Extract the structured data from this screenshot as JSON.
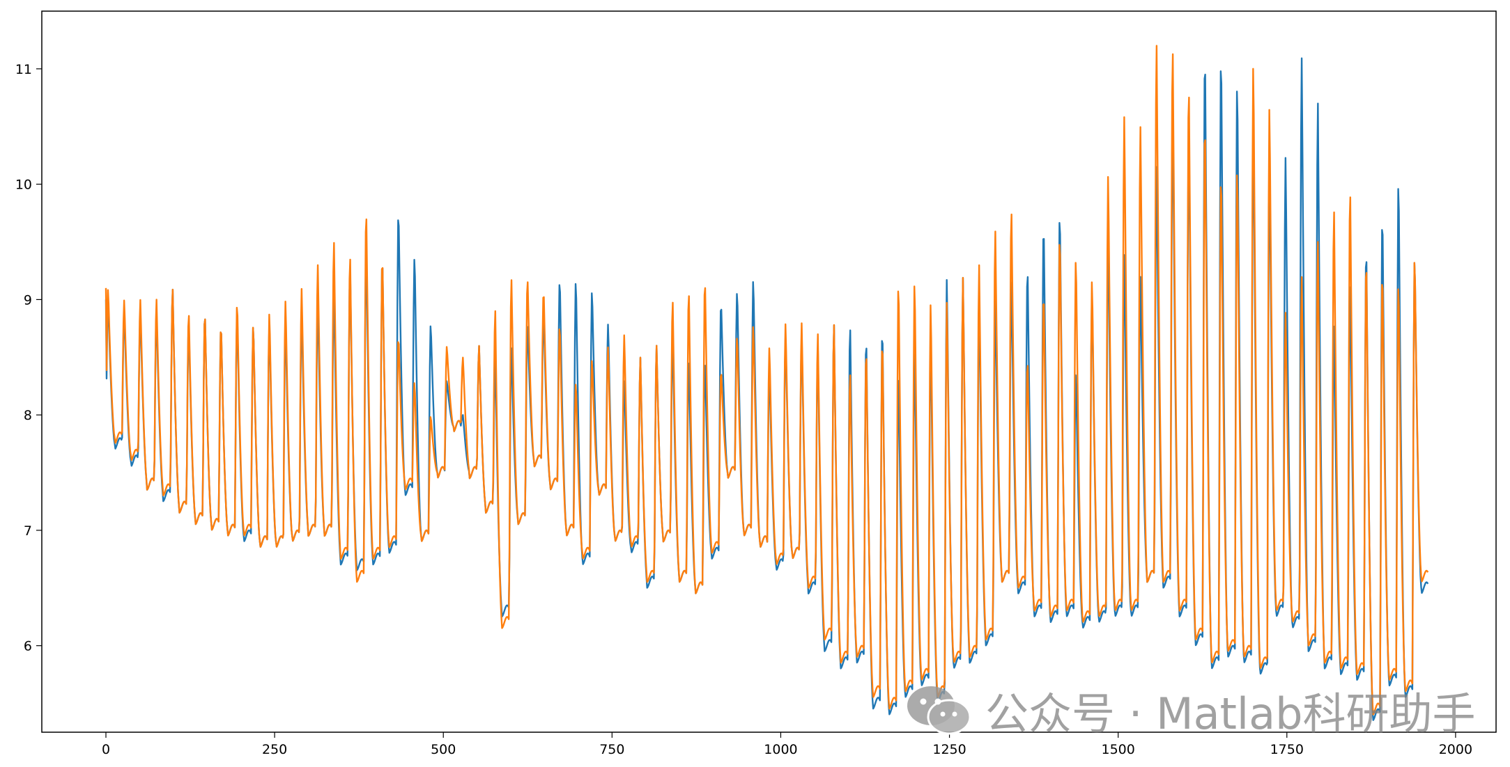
{
  "chart_data": {
    "type": "line",
    "title": "",
    "xlabel": "",
    "ylabel": "",
    "xlim": [
      -95,
      2060
    ],
    "ylim": [
      5.25,
      11.5
    ],
    "x_ticks": [
      0,
      250,
      500,
      750,
      1000,
      1250,
      1500,
      1750,
      2000
    ],
    "y_ticks": [
      6,
      7,
      8,
      9,
      10,
      11
    ],
    "grid": false,
    "legend": "none",
    "n_points": 1960,
    "series": [
      {
        "color": "#1f77b4",
        "peaks": [
          9.0,
          8.9,
          8.9,
          8.9,
          9.1,
          8.8,
          8.9,
          8.8,
          8.9,
          8.8,
          8.8,
          8.8,
          8.9,
          9.0,
          9.1,
          9.3,
          9.5,
          9.4,
          9.8,
          9.4,
          8.8,
          8.3,
          8.0,
          8.6,
          8.5,
          8.6,
          8.8,
          8.9,
          9.2,
          9.2,
          9.1,
          8.8,
          8.3,
          8.5,
          8.6,
          8.7,
          8.5,
          8.5,
          9.0,
          9.1,
          9.2,
          8.4,
          8.7,
          8.7,
          8.6,
          8.8,
          8.8,
          8.7,
          8.8,
          8.4,
          8.6,
          8.7,
          9.2,
          9.2,
          9.0,
          9.0,
          9.2,
          9.3,
          9.7,
          9.8,
          8.4,
          9.1,
          9.6,
          9.4,
          9.2,
          10.15,
          10.7,
          10.55,
          11.2,
          11.2,
          10.95,
          10.6,
          10.2,
          10.25,
          11.1,
          10.7,
          8.8,
          9.2,
          9.5,
          9.8,
          10.1,
          9.4
        ],
        "troughs": [
          7.75,
          7.6,
          7.4,
          7.3,
          7.2,
          7.1,
          7.05,
          7.0,
          6.95,
          6.9,
          6.9,
          6.95,
          7.0,
          7.0,
          6.75,
          6.7,
          6.75,
          6.85,
          7.35,
          6.95,
          7.5,
          7.9,
          7.5,
          7.2,
          6.3,
          7.1,
          7.6,
          7.4,
          7.0,
          6.75,
          7.35,
          6.95,
          6.85,
          6.55,
          6.95,
          6.6,
          6.5,
          6.8,
          7.5,
          7.0,
          6.9,
          6.7,
          6.8,
          6.5,
          6.0,
          5.85,
          5.9,
          5.5,
          5.45,
          5.6,
          5.7,
          5.55,
          5.85,
          5.9,
          6.05,
          6.6,
          6.5,
          6.3,
          6.25,
          6.3,
          6.2,
          6.25,
          6.3,
          6.3,
          6.6,
          6.55,
          6.3,
          6.05,
          5.85,
          5.95,
          5.9,
          5.8,
          6.3,
          6.2,
          6.0,
          5.85,
          5.8,
          5.75,
          5.4,
          5.7,
          5.6,
          6.5
        ]
      },
      {
        "color": "#ff7f0e",
        "peaks": [
          9.1,
          9.0,
          9.0,
          9.0,
          9.1,
          8.9,
          8.9,
          8.8,
          9.0,
          8.8,
          8.9,
          9.0,
          9.1,
          9.3,
          9.5,
          9.4,
          9.8,
          9.4,
          8.7,
          8.3,
          8.0,
          8.6,
          8.5,
          8.6,
          8.9,
          9.2,
          9.2,
          9.1,
          8.8,
          8.3,
          8.5,
          8.6,
          8.7,
          8.5,
          8.6,
          9.0,
          9.1,
          9.2,
          8.4,
          8.7,
          8.8,
          8.6,
          8.8,
          8.8,
          8.7,
          8.8,
          8.4,
          8.6,
          8.7,
          9.2,
          9.2,
          9.0,
          9.0,
          9.2,
          9.3,
          9.6,
          9.8,
          8.5,
          9.1,
          9.6,
          9.4,
          9.2,
          10.1,
          10.6,
          10.5,
          11.2,
          11.2,
          10.9,
          10.6,
          10.15,
          10.2,
          11.1,
          10.7,
          8.9,
          9.2,
          9.5,
          9.8,
          10.0,
          9.4,
          9.3,
          9.2,
          9.4
        ],
        "troughs": [
          7.8,
          7.65,
          7.4,
          7.35,
          7.2,
          7.1,
          7.05,
          7.0,
          7.0,
          6.9,
          6.9,
          6.95,
          7.0,
          7.0,
          6.8,
          6.6,
          6.8,
          6.9,
          7.4,
          6.95,
          7.5,
          7.9,
          7.5,
          7.2,
          6.2,
          7.1,
          7.6,
          7.4,
          7.0,
          6.8,
          7.35,
          6.95,
          6.9,
          6.6,
          6.95,
          6.6,
          6.5,
          6.85,
          7.5,
          7.0,
          6.9,
          6.75,
          6.8,
          6.55,
          6.1,
          5.9,
          5.95,
          5.6,
          5.5,
          5.65,
          5.75,
          5.6,
          5.9,
          5.95,
          6.1,
          6.6,
          6.55,
          6.35,
          6.3,
          6.35,
          6.25,
          6.3,
          6.35,
          6.35,
          6.6,
          6.6,
          6.35,
          6.1,
          5.9,
          6.0,
          5.95,
          5.85,
          6.35,
          6.25,
          6.05,
          5.9,
          5.85,
          5.8,
          5.45,
          5.75,
          5.65,
          6.6
        ]
      }
    ]
  },
  "watermark": {
    "icon": "wechat-icon",
    "text": "公众号 · Matlab科研助手"
  }
}
